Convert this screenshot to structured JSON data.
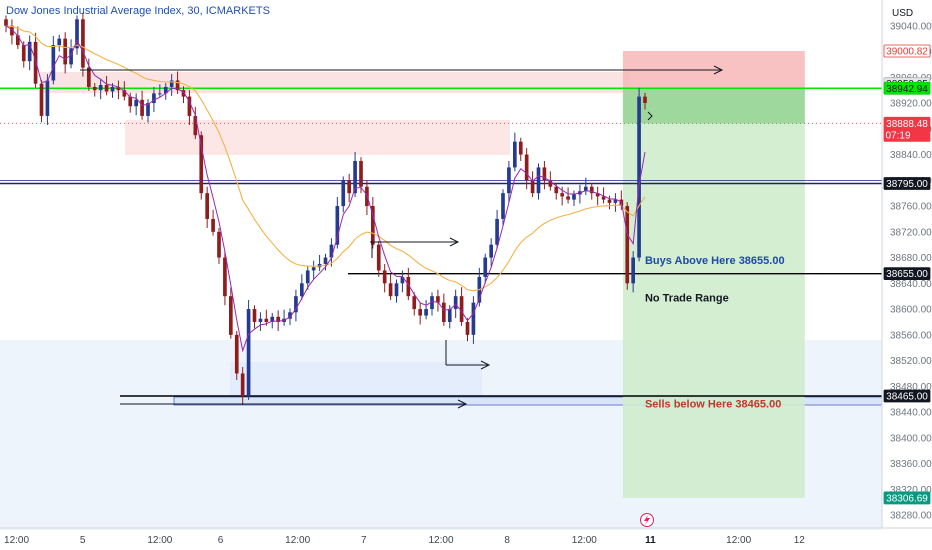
{
  "chart_data": {
    "type": "candlestick",
    "title": "Dow Jones Industrial Average Index, 30, ICMARKETS",
    "currency": "USD",
    "y_range": [
      38260,
      39080
    ],
    "x_range": [
      0,
      160
    ],
    "y_ticks": [
      39040,
      39000,
      38960,
      38920,
      38880,
      38840,
      38800,
      38760,
      38720,
      38680,
      38640,
      38600,
      38560,
      38520,
      38480,
      38440,
      38400,
      38360,
      38320,
      38280
    ],
    "x_ticks": [
      {
        "x": 3,
        "label": "12:00",
        "bold": false
      },
      {
        "x": 15,
        "label": "5",
        "bold": false
      },
      {
        "x": 29,
        "label": "12:00",
        "bold": false
      },
      {
        "x": 40,
        "label": "6",
        "bold": false
      },
      {
        "x": 54,
        "label": "12:00",
        "bold": false
      },
      {
        "x": 66,
        "label": "7",
        "bold": false
      },
      {
        "x": 80,
        "label": "12:00",
        "bold": false
      },
      {
        "x": 92,
        "label": "8",
        "bold": false
      },
      {
        "x": 106,
        "label": "12:00",
        "bold": false
      },
      {
        "x": 118,
        "label": "11",
        "bold": true
      },
      {
        "x": 134,
        "label": "12:00",
        "bold": false
      },
      {
        "x": 145,
        "label": "12",
        "bold": false
      }
    ],
    "candle_closes": [
      39040,
      39025,
      39010,
      38985,
      39015,
      38950,
      38900,
      38955,
      39010,
      39020,
      38980,
      39005,
      39050,
      38975,
      38945,
      38940,
      38948,
      38938,
      38945,
      38940,
      38930,
      38915,
      38925,
      38900,
      38920,
      38935,
      38935,
      38945,
      38955,
      38940,
      38930,
      38900,
      38870,
      38780,
      38740,
      38720,
      38680,
      38620,
      38560,
      38500,
      38465,
      38600,
      38580,
      38585,
      38580,
      38588,
      38580,
      38585,
      38595,
      38620,
      38640,
      38660,
      38665,
      38670,
      38680,
      38700,
      38760,
      38800,
      38780,
      38830,
      38790,
      38760,
      38700,
      38660,
      38640,
      38620,
      38640,
      38650,
      38620,
      38600,
      38590,
      38600,
      38620,
      38610,
      38580,
      38600,
      38620,
      38580,
      38560,
      38610,
      38650,
      38680,
      38700,
      38740,
      38780,
      38820,
      38860,
      38840,
      38800,
      38780,
      38820,
      38800,
      38790,
      38780,
      38775,
      38770,
      38778,
      38783,
      38790,
      38780,
      38775,
      38770,
      38765,
      38770,
      38760,
      38640,
      38680,
      38930,
      38920
    ],
    "ema_fast_color": "#9c27b0",
    "ema_slow_color": "#f2b34a",
    "bull_color": "#253b90",
    "bear_color": "#8f1d1d",
    "levels": [
      {
        "price": 38942.94,
        "color": "#00e600",
        "label": "38942.94"
      },
      {
        "price": 38795.0,
        "color": "#1b1f8a",
        "label": "38795.00"
      },
      {
        "price": 38655.0,
        "color": "#000000",
        "label": "38655.00"
      },
      {
        "price": 38465.0,
        "color": "#000000",
        "label": "38465.00"
      }
    ],
    "price_tags": [
      {
        "price": 39000.82,
        "label": "39000.82",
        "bg": "#ffffff",
        "fg": "#e53935",
        "border": "#e53935"
      },
      {
        "price": 38950.05,
        "label": "38950.05",
        "bg": "#e6e6e6",
        "fg": "#131722",
        "border": "#b0b3b8"
      },
      {
        "price": 38942.94,
        "label": "38942.94",
        "bg": "#00e600",
        "fg": "#131722",
        "border": "#00c800"
      },
      {
        "price": 38888.48,
        "label": "38888.48",
        "sub": "07:19",
        "bg": "#f23645",
        "fg": "#ffffff",
        "border": "#f23645"
      },
      {
        "price": 38795.0,
        "label": "38795.00",
        "bg": "#131722",
        "fg": "#ffffff",
        "border": "#131722"
      },
      {
        "price": 38655.0,
        "label": "38655.00",
        "bg": "#131722",
        "fg": "#ffffff",
        "border": "#131722"
      },
      {
        "price": 38465.0,
        "label": "38465.00",
        "bg": "#131722",
        "fg": "#ffffff",
        "border": "#131722"
      },
      {
        "price": 38306.69,
        "label": "38306.69",
        "bg": "#089981",
        "fg": "#ffffff",
        "border": "#089981"
      }
    ],
    "annotations": [
      {
        "text": "Buys Above Here 38655.00",
        "x": 117,
        "price": 38670,
        "color": "#1e4aa8"
      },
      {
        "text": "No Trade Range",
        "x": 117,
        "price": 38612,
        "color": "#131722"
      },
      {
        "text": "Sells below Here 38465.00",
        "x": 117,
        "price": 38447,
        "color": "#c0392b"
      }
    ],
    "position_tool": {
      "entry": 38942.94,
      "stop": 39000.82,
      "target": 38306.69,
      "x_start": 113,
      "x_end": 146
    },
    "current_price": 38888.48
  }
}
